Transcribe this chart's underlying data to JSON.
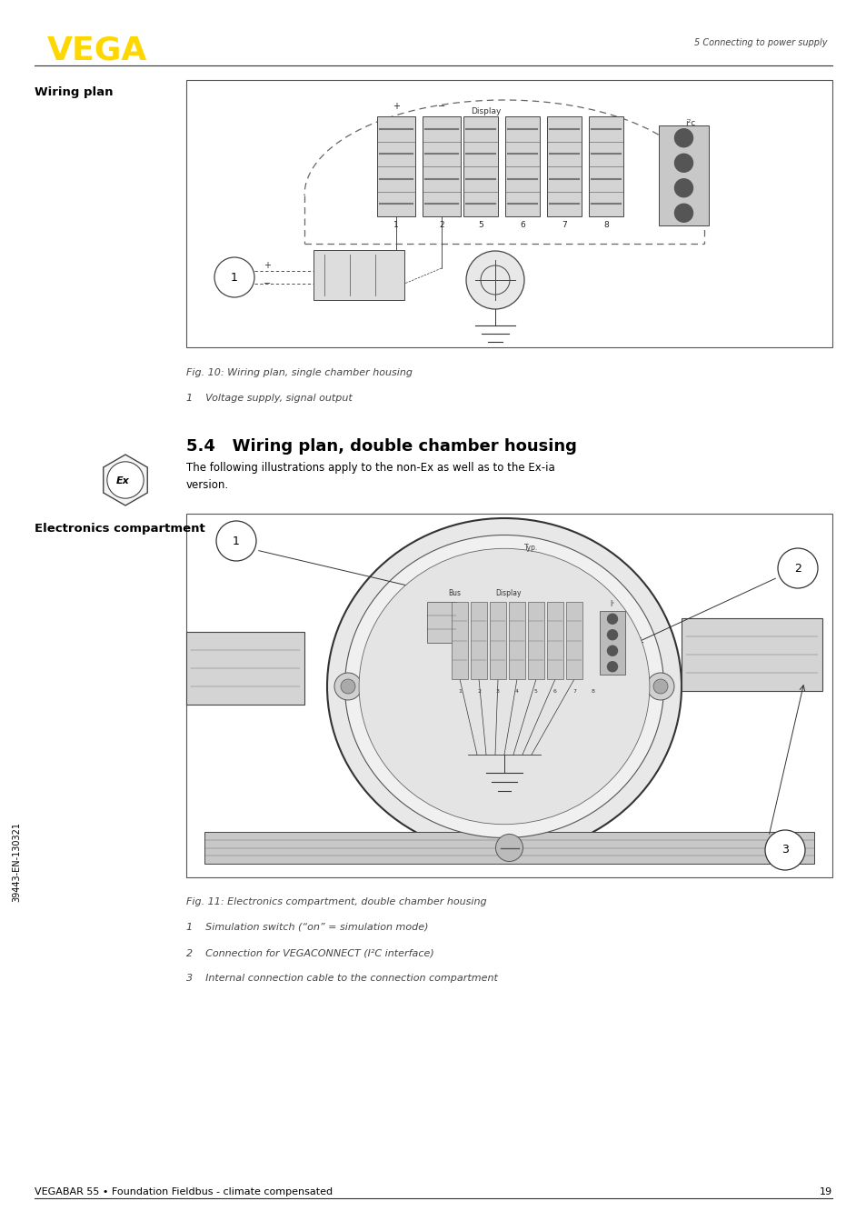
{
  "page_width": 9.54,
  "page_height": 13.54,
  "bg_color": "#ffffff",
  "vega_logo_color": "#FFD700",
  "vega_logo_text": "VEGA",
  "header_right_text": "5 Connecting to power supply",
  "footer_left_text": "VEGABAR 55 • Foundation Fieldbus - climate compensated",
  "footer_right_text": "19",
  "section_label_left": "Wiring plan",
  "fig10_caption": "Fig. 10: Wiring plan, single chamber housing",
  "fig10_item1": "1    Voltage supply, signal output",
  "section_title": "5.4   Wiring plan, double chamber housing",
  "section_body": "The following illustrations apply to the non-Ex as well as to the Ex-ia\nversion.",
  "electronics_label": "Electronics compartment",
  "fig11_caption": "Fig. 11: Electronics compartment, double chamber housing",
  "fig11_item1": "1    Simulation switch (“on” = simulation mode)",
  "fig11_item2": "2    Connection for VEGACONNECT (I²C interface)",
  "fig11_item3": "3    Internal connection cable to the connection compartment",
  "sidebar_text": "39443-EN-130321"
}
